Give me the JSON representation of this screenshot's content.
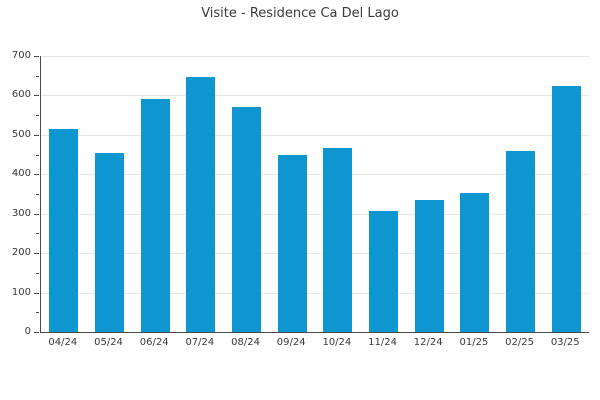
{
  "title": "Visite - Residence Ca Del Lago",
  "colors": {
    "bar": "#0e96d0",
    "grid": "#e6e6e6",
    "axis": "#4a4a4a",
    "text": "#3a3a3a",
    "background": "#ffffff"
  },
  "chart_data": {
    "type": "bar",
    "title": "Visite - Residence Ca Del Lago",
    "categories": [
      "04/24",
      "05/24",
      "06/24",
      "07/24",
      "08/24",
      "09/24",
      "10/24",
      "11/24",
      "12/24",
      "01/25",
      "02/25",
      "03/25"
    ],
    "values": [
      515,
      455,
      592,
      648,
      570,
      448,
      467,
      307,
      335,
      352,
      460,
      625
    ],
    "xlabel": "",
    "ylabel": "",
    "ylim": [
      0,
      700
    ],
    "yticks": [
      0,
      100,
      200,
      300,
      400,
      500,
      600,
      700
    ],
    "minor_tick_step": 50,
    "grid": "horizontal-major",
    "legend": "none"
  }
}
